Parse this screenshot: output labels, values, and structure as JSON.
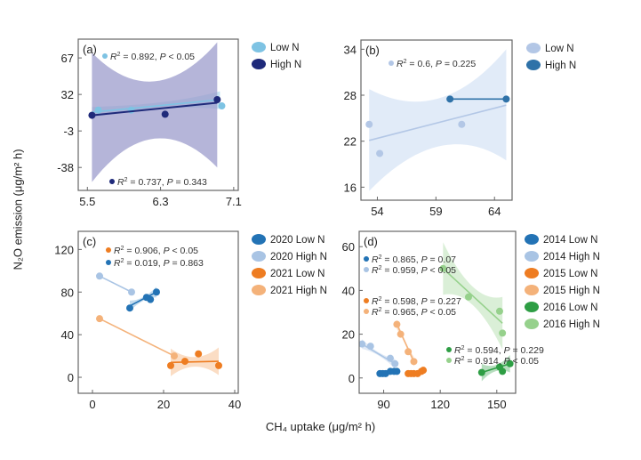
{
  "figure": {
    "ylabel": "N₂O emission (μg/m² h)",
    "xlabel": "CH₄ uptake (μg/m² h)"
  },
  "chart_data": [
    {
      "panel": "(a)",
      "type": "scatter",
      "xlim": [
        5.4,
        7.15
      ],
      "ylim": [
        -60,
        85
      ],
      "xticks": [
        5.5,
        6.3,
        7.1
      ],
      "yticks": [
        67,
        32,
        -3,
        -38
      ],
      "legend": [
        {
          "label": "Low N",
          "color": "#7ec3e3"
        },
        {
          "label": "High N",
          "color": "#1f2a7a"
        }
      ],
      "series": [
        {
          "name": "Low N",
          "color": "#7ec3e3",
          "band_color": "#b5dcef",
          "points": [
            [
              5.62,
              17
            ],
            [
              5.98,
              17
            ],
            [
              6.97,
              21
            ]
          ],
          "fit": [
            [
              5.55,
              15
            ],
            [
              6.95,
              27
            ]
          ],
          "band": {
            "lower": [
              10,
              18
            ],
            "upper": [
              20,
              35
            ]
          },
          "annotation": {
            "r2": "0.892",
            "p": "P < 0.05"
          }
        },
        {
          "name": "High N",
          "color": "#1f2a7a",
          "band_color": "#9c9ccc",
          "points": [
            [
              5.55,
              12
            ],
            [
              6.35,
              13
            ],
            [
              6.92,
              27
            ]
          ],
          "fit": [
            [
              5.55,
              12
            ],
            [
              6.92,
              24
            ]
          ],
          "band": {
            "lower": [
              -52,
              -38
            ],
            "upper": [
              72,
              82
            ]
          },
          "annotation": {
            "r2": "0.737",
            "p": "P = 0.343"
          }
        }
      ]
    },
    {
      "panel": "(b)",
      "type": "scatter",
      "xlim": [
        52.6,
        65.5
      ],
      "ylim": [
        14.3,
        35.2
      ],
      "xticks": [
        54,
        59,
        64
      ],
      "yticks": [
        34,
        28,
        22,
        16
      ],
      "legend": [
        {
          "label": "Low N",
          "color": "#b3c7e6"
        },
        {
          "label": "High N",
          "color": "#2f72a8"
        }
      ],
      "series": [
        {
          "name": "Low N",
          "color": "#b3c7e6",
          "band_color": "#d7e4f5",
          "points": [
            [
              53.3,
              24.2
            ],
            [
              54.2,
              20.4
            ],
            [
              61.2,
              24.2
            ]
          ],
          "fit": [
            [
              53.3,
              22.1
            ],
            [
              65.0,
              26.7
            ]
          ],
          "band": {
            "lower": [
              15.5,
              19.5
            ],
            "upper": [
              28.8,
              34.0
            ]
          },
          "annotation": {
            "r2": "0.6",
            "p": "P = 0.225"
          }
        },
        {
          "name": "High N",
          "color": "#2f72a8",
          "points": [
            [
              60.2,
              27.5
            ],
            [
              65.0,
              27.5
            ]
          ],
          "fit": [
            [
              60.2,
              27.5
            ],
            [
              65.0,
              27.5
            ]
          ]
        }
      ]
    },
    {
      "panel": "(c)",
      "type": "scatter",
      "xlim": [
        -4,
        41
      ],
      "ylim": [
        -15,
        137
      ],
      "xticks": [
        0,
        20,
        40
      ],
      "yticks": [
        0,
        40,
        80,
        120
      ],
      "legend": [
        {
          "label": "2020 Low N",
          "color": "#2373b5"
        },
        {
          "label": "2020 High N",
          "color": "#a9c4e4"
        },
        {
          "label": "2021 Low N",
          "color": "#ee7d22"
        },
        {
          "label": "2021 High N",
          "color": "#f4b27a"
        }
      ],
      "series": [
        {
          "name": "2020 Low N",
          "color": "#2373b5",
          "band_color": "#9bc4e4",
          "points": [
            [
              10.5,
              65
            ],
            [
              15.2,
              75
            ],
            [
              16.3,
              73
            ],
            [
              18.0,
              80
            ]
          ],
          "fit": [
            [
              10.5,
              67
            ],
            [
              18.0,
              80
            ]
          ],
          "annotation": {
            "r2": "0.019",
            "p": "P = 0.863"
          }
        },
        {
          "name": "2020 High N",
          "color": "#a9c4e4",
          "points": [
            [
              2.0,
              95
            ],
            [
              11.0,
              80
            ]
          ],
          "fit": [
            [
              2.0,
              95
            ],
            [
              11.0,
              80
            ]
          ]
        },
        {
          "name": "2021 Low N",
          "color": "#ee7d22",
          "band_color": "#f8c69c",
          "points": [
            [
              22.0,
              11
            ],
            [
              26.0,
              15
            ],
            [
              29.8,
              22
            ],
            [
              35.5,
              11
            ]
          ],
          "fit": [
            [
              22.0,
              14
            ],
            [
              35.5,
              15
            ]
          ],
          "annotation": {
            "r2": "0.906",
            "p": "P < 0.05"
          }
        },
        {
          "name": "2021 High N",
          "color": "#f4b27a",
          "points": [
            [
              2.0,
              55
            ],
            [
              23.0,
              20
            ]
          ],
          "fit": [
            [
              2.0,
              55
            ],
            [
              23.0,
              20
            ]
          ]
        }
      ]
    },
    {
      "panel": "(d)",
      "type": "scatter",
      "xlim": [
        77,
        160
      ],
      "ylim": [
        -7,
        67
      ],
      "xticks": [
        90,
        120,
        150
      ],
      "yticks": [
        0,
        20,
        40,
        60
      ],
      "legend": [
        {
          "label": "2014 Low N",
          "color": "#2373b5"
        },
        {
          "label": "2014 High N",
          "color": "#a9c4e4"
        },
        {
          "label": "2015 Low N",
          "color": "#ee7d22"
        },
        {
          "label": "2015 High N",
          "color": "#f4b27a"
        },
        {
          "label": "2016 Low N",
          "color": "#2e9e44"
        },
        {
          "label": "2016 High N",
          "color": "#96d18c"
        }
      ],
      "series": [
        {
          "name": "2014 Low N",
          "color": "#2373b5",
          "points": [
            [
              88,
              2
            ],
            [
              89.5,
              2
            ],
            [
              91,
              2
            ],
            [
              93.5,
              3
            ],
            [
              95.5,
              3
            ],
            [
              97,
              3
            ]
          ],
          "annotation": {
            "r2": "0.865",
            "p": "P = 0.07"
          }
        },
        {
          "name": "2014 High N",
          "color": "#a9c4e4",
          "points": [
            [
              78.5,
              15.5
            ],
            [
              83,
              14.5
            ],
            [
              93.5,
              9
            ],
            [
              96,
              6.5
            ]
          ],
          "fit": [
            [
              78.5,
              15.5
            ],
            [
              96,
              6.5
            ]
          ],
          "annotation": {
            "r2": "0.959",
            "p": "P < 0.05"
          }
        },
        {
          "name": "2015 Low N",
          "color": "#ee7d22",
          "points": [
            [
              103,
              2
            ],
            [
              104.5,
              2
            ],
            [
              106,
              2
            ],
            [
              108,
              2
            ],
            [
              110,
              3
            ],
            [
              111,
              3.5
            ]
          ],
          "annotation": {
            "r2": "0.598",
            "p": "P = 0.227"
          }
        },
        {
          "name": "2015 High N",
          "color": "#f4b27a",
          "points": [
            [
              97,
              24.5
            ],
            [
              99,
              20
            ],
            [
              103,
              12
            ],
            [
              106,
              7.5
            ]
          ],
          "fit": [
            [
              97,
              24.5
            ],
            [
              106,
              7.5
            ]
          ],
          "annotation": {
            "r2": "0.965",
            "p": "P < 0.05"
          }
        },
        {
          "name": "2016 Low N",
          "color": "#2e9e44",
          "points": [
            [
              142,
              2.5
            ],
            [
              151.5,
              5
            ],
            [
              153,
              3
            ],
            [
              157,
              6.5
            ]
          ],
          "fit": [
            [
              142,
              2.5
            ],
            [
              157,
              6.5
            ]
          ],
          "annotation": {
            "r2": "0.594",
            "p": "P = 0.229"
          }
        },
        {
          "name": "2016 High N",
          "color": "#96d18c",
          "points": [
            [
              121.5,
              50
            ],
            [
              135,
              37
            ],
            [
              151.5,
              30.5
            ],
            [
              153,
              20.5
            ]
          ],
          "fit": [
            [
              121.5,
              50
            ],
            [
              153,
              25
            ]
          ],
          "annotation": {
            "r2": "0.914",
            "p": "P < 0.05"
          }
        }
      ]
    }
  ]
}
